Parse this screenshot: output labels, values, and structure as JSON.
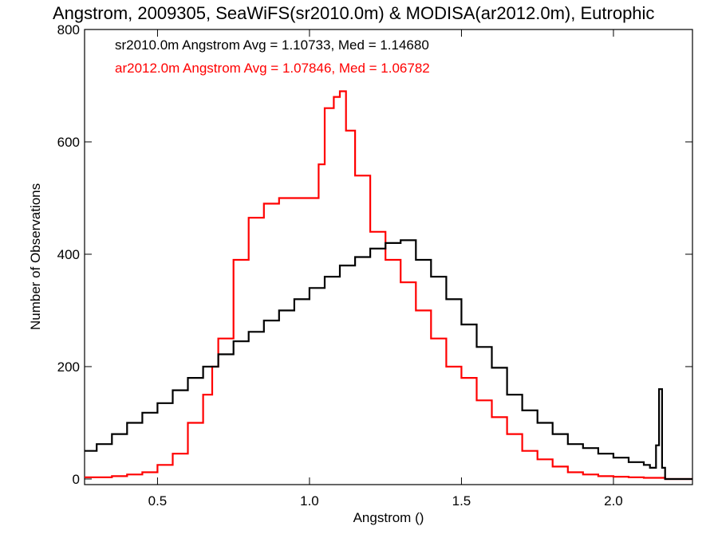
{
  "chart_data": {
    "type": "line",
    "title": "Angstrom, 2009305, SeaWiFS(sr2010.0m) & MODISA(ar2012.0m), Eutrophic",
    "xlabel": "Angstrom ()",
    "ylabel": "Number of Observations",
    "xlim": [
      0.26,
      2.26
    ],
    "ylim": [
      -10,
      800
    ],
    "x_ticks": [
      0.5,
      1.0,
      1.5,
      2.0
    ],
    "x_tick_labels": [
      "0.5",
      "1.0",
      "1.5",
      "2.0"
    ],
    "y_ticks": [
      0,
      200,
      400,
      600,
      800
    ],
    "y_tick_labels": [
      "0",
      "200",
      "400",
      "600",
      "800"
    ],
    "grid": false,
    "legend_position": "top-left",
    "series": [
      {
        "name": "sr2010.0m",
        "label": "sr2010.0m Angstrom Avg = 1.10733, Med = 1.14680",
        "color": "#000000",
        "x": [
          0.26,
          0.3,
          0.35,
          0.4,
          0.45,
          0.5,
          0.55,
          0.6,
          0.65,
          0.7,
          0.75,
          0.8,
          0.85,
          0.9,
          0.95,
          1.0,
          1.05,
          1.1,
          1.15,
          1.2,
          1.25,
          1.3,
          1.35,
          1.4,
          1.45,
          1.5,
          1.55,
          1.6,
          1.65,
          1.7,
          1.75,
          1.8,
          1.85,
          1.9,
          1.95,
          2.0,
          2.05,
          2.1,
          2.12,
          2.14,
          2.15,
          2.16,
          2.17,
          2.26
        ],
        "values": [
          50,
          62,
          80,
          100,
          118,
          135,
          158,
          180,
          200,
          222,
          245,
          262,
          282,
          300,
          320,
          340,
          360,
          380,
          395,
          410,
          420,
          425,
          390,
          360,
          320,
          275,
          235,
          198,
          150,
          122,
          100,
          80,
          62,
          55,
          45,
          38,
          30,
          25,
          20,
          60,
          160,
          20,
          0,
          0
        ]
      },
      {
        "name": "ar2012.0m",
        "label": "ar2012.0m Angstrom Avg = 1.07846, Med = 1.06782",
        "color": "#ff0000",
        "x": [
          0.26,
          0.3,
          0.35,
          0.4,
          0.45,
          0.5,
          0.55,
          0.6,
          0.65,
          0.68,
          0.7,
          0.75,
          0.8,
          0.85,
          0.9,
          0.95,
          1.0,
          1.03,
          1.05,
          1.08,
          1.1,
          1.12,
          1.15,
          1.2,
          1.25,
          1.3,
          1.35,
          1.4,
          1.45,
          1.5,
          1.55,
          1.6,
          1.65,
          1.7,
          1.75,
          1.8,
          1.85,
          1.9,
          1.95,
          2.0,
          2.05,
          2.1,
          2.15,
          2.17,
          2.26
        ],
        "values": [
          3,
          3,
          5,
          8,
          12,
          25,
          45,
          100,
          150,
          200,
          250,
          390,
          465,
          490,
          500,
          500,
          500,
          560,
          660,
          680,
          690,
          620,
          540,
          440,
          390,
          350,
          300,
          250,
          200,
          180,
          140,
          110,
          80,
          50,
          35,
          22,
          12,
          8,
          5,
          4,
          3,
          2,
          2,
          0,
          0
        ]
      }
    ]
  }
}
